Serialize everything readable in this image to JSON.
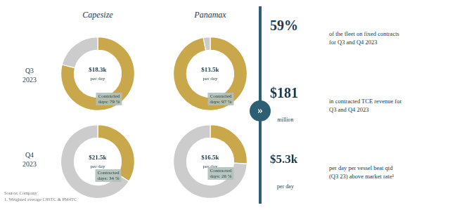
{
  "chart_data": [
    {
      "type": "doughnut",
      "values": [
        79,
        21
      ],
      "colors": [
        "#c9a84c",
        "#cccccc"
      ],
      "annotations": [
        "$18.3k",
        "per day",
        "Contracted\ndays: 79 %"
      ]
    },
    {
      "type": "doughnut",
      "values": [
        97,
        3
      ],
      "colors": [
        "#c9a84c",
        "#cccccc"
      ],
      "annotations": [
        "$13.5k",
        "per day",
        "Contracted\ndays: 97 %"
      ]
    },
    {
      "type": "doughnut",
      "values": [
        34,
        66
      ],
      "colors": [
        "#c9a84c",
        "#cccccc"
      ],
      "annotations": [
        "$21.5k",
        "per day",
        "Contracted\ndays: 34 %"
      ]
    },
    {
      "type": "doughnut",
      "values": [
        26,
        74
      ],
      "colors": [
        "#c9a84c",
        "#cccccc"
      ],
      "annotations": [
        "$16.5k",
        "per day",
        "Contracted\ndays: 26 %"
      ]
    }
  ],
  "annotations": [
    "Capesize",
    "Panamax",
    "Q3\n2023",
    "Q4\n2023",
    "»",
    "59%",
    "of the fleet on fixed contracts\nfor Q3 and Q4 2023",
    "$181",
    "million",
    "in contracted TCE revenue for\nQ3 and Q4 2023",
    "$5.3k",
    "per day",
    "per day per vessel beat qtd\n(Q3 23) above market rate¹",
    "Source: Company\n1. Weighted average C8STC & PM4TC"
  ]
}
